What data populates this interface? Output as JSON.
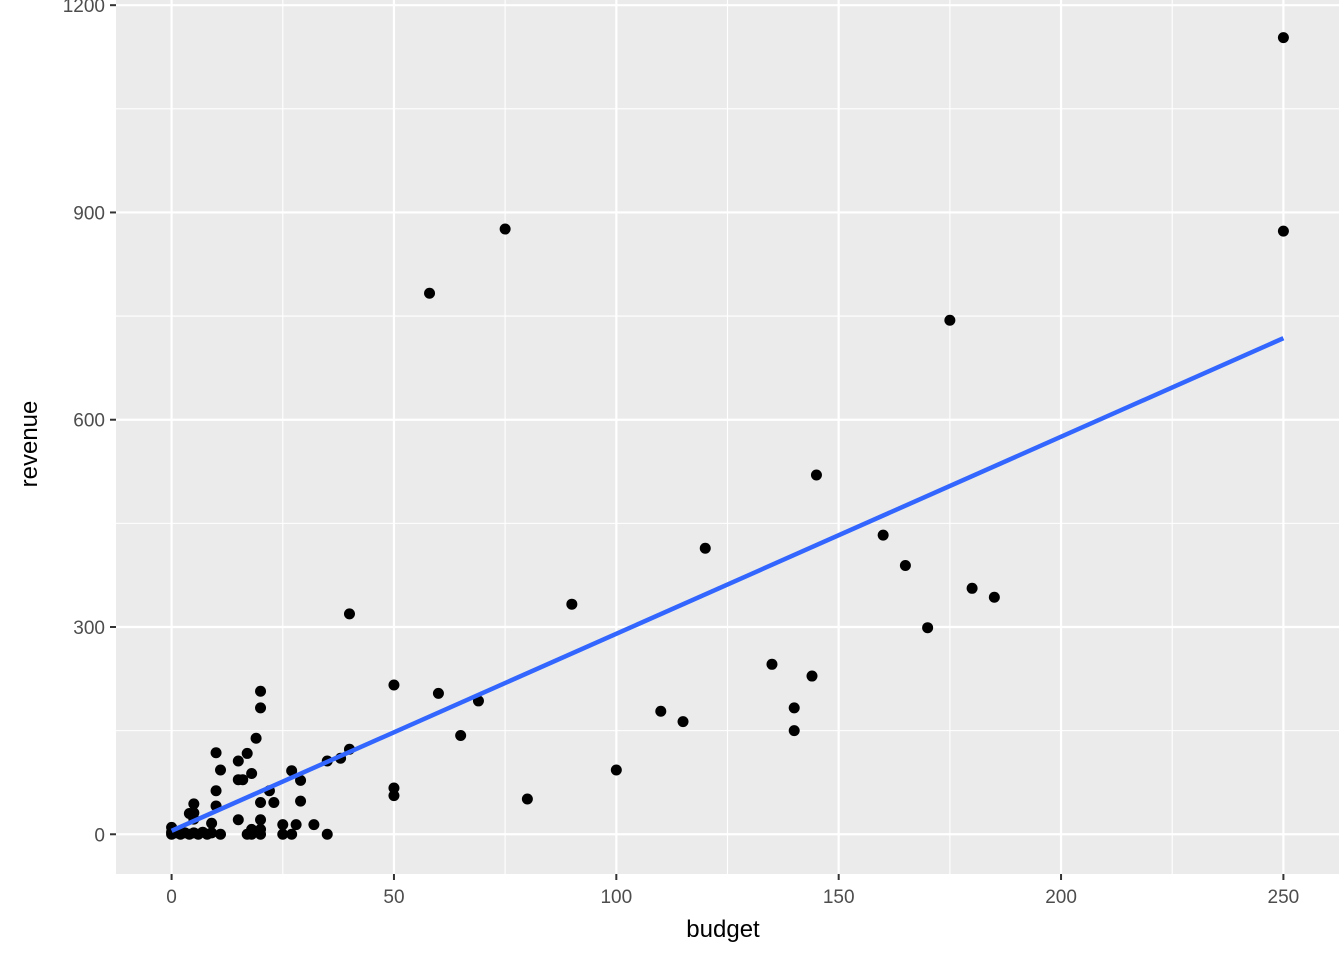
{
  "chart_data": {
    "type": "scatter",
    "xlabel": "budget",
    "ylabel": "revenue",
    "xlim": [
      -12.5,
      262.5
    ],
    "ylim": [
      -57.5,
      1207.5
    ],
    "x_ticks": [
      0,
      50,
      100,
      150,
      200,
      250
    ],
    "y_ticks": [
      0,
      300,
      600,
      900,
      1200
    ],
    "x_tick_labels": [
      "0",
      "50",
      "100",
      "150",
      "200",
      "250"
    ],
    "y_tick_labels": [
      "0",
      "300",
      "600",
      "900",
      "1200"
    ],
    "grid": true,
    "background": "#ebebeb",
    "point_color": "#000000",
    "trend_color": "#3366ff",
    "points": [
      [
        250,
        1153
      ],
      [
        250,
        873
      ],
      [
        75,
        876
      ],
      [
        58,
        783
      ],
      [
        175,
        744
      ],
      [
        145,
        520
      ],
      [
        120,
        414
      ],
      [
        160,
        433
      ],
      [
        165,
        389
      ],
      [
        180,
        356
      ],
      [
        185,
        343
      ],
      [
        170,
        299
      ],
      [
        90,
        333
      ],
      [
        40,
        319
      ],
      [
        135,
        246
      ],
      [
        144,
        229
      ],
      [
        140,
        183
      ],
      [
        140,
        150
      ],
      [
        110,
        178
      ],
      [
        115,
        163
      ],
      [
        100,
        93
      ],
      [
        80,
        51
      ],
      [
        50,
        216
      ],
      [
        60,
        204
      ],
      [
        69,
        193
      ],
      [
        65,
        143
      ],
      [
        50,
        67
      ],
      [
        50,
        56
      ],
      [
        40,
        123
      ],
      [
        38,
        110
      ],
      [
        35,
        106
      ],
      [
        35,
        0
      ],
      [
        32,
        14
      ],
      [
        29,
        78
      ],
      [
        29,
        48
      ],
      [
        28,
        14
      ],
      [
        27,
        92
      ],
      [
        27,
        0
      ],
      [
        25,
        14
      ],
      [
        25,
        0
      ],
      [
        23,
        46
      ],
      [
        22,
        63
      ],
      [
        20,
        207
      ],
      [
        20,
        183
      ],
      [
        20,
        46
      ],
      [
        20,
        21
      ],
      [
        20,
        7
      ],
      [
        20,
        0
      ],
      [
        19,
        139
      ],
      [
        18,
        88
      ],
      [
        18,
        7
      ],
      [
        18,
        0
      ],
      [
        17,
        117
      ],
      [
        17,
        0
      ],
      [
        16,
        79
      ],
      [
        15,
        106
      ],
      [
        15,
        79
      ],
      [
        15,
        21
      ],
      [
        11,
        93
      ],
      [
        11,
        0
      ],
      [
        10,
        118
      ],
      [
        10,
        63
      ],
      [
        10,
        41
      ],
      [
        9,
        16
      ],
      [
        9,
        2
      ],
      [
        8,
        0
      ],
      [
        7,
        3
      ],
      [
        6,
        0
      ],
      [
        5,
        44
      ],
      [
        5,
        31
      ],
      [
        5,
        22
      ],
      [
        5,
        2
      ],
      [
        4,
        30
      ],
      [
        4,
        0
      ],
      [
        3,
        2
      ],
      [
        2,
        0
      ],
      [
        1,
        2
      ],
      [
        0,
        10
      ],
      [
        0,
        0
      ],
      [
        0,
        3
      ]
    ],
    "trend_line": {
      "x": [
        0,
        250
      ],
      "y": [
        5,
        718
      ]
    }
  }
}
